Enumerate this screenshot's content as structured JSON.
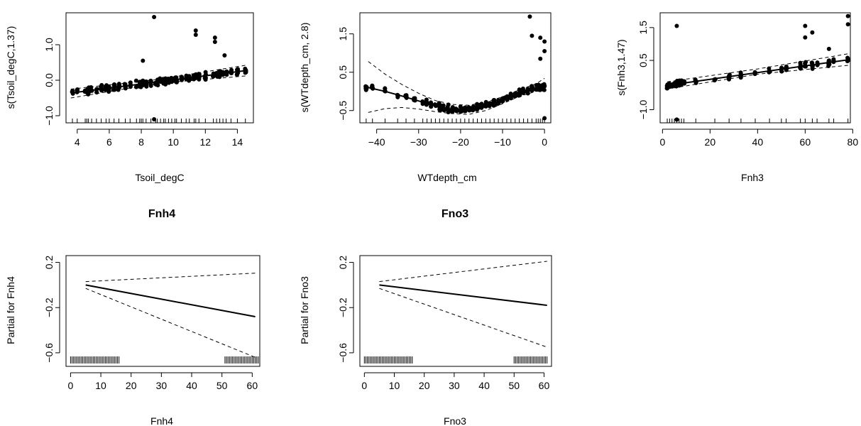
{
  "chart_data": [
    {
      "type": "scatter",
      "title": "",
      "xlabel": "Tsoil_degC",
      "ylabel": "s(Tsoil_degC,1.37)",
      "xlim": [
        3.3,
        15.0
      ],
      "ylim": [
        -1.2,
        1.9
      ],
      "xticks": [
        "4",
        "6",
        "8",
        "10",
        "12",
        "14"
      ],
      "yticks": [
        "-1.0",
        "0.0",
        "1.0"
      ],
      "series": [
        {
          "role": "fit",
          "x": [
            3.6,
            14.5
          ],
          "y": [
            -0.36,
            0.27
          ]
        },
        {
          "role": "upper",
          "x": [
            3.6,
            9,
            14.5
          ],
          "y": [
            -0.25,
            0.02,
            0.42
          ]
        },
        {
          "role": "lower",
          "x": [
            3.6,
            9,
            14.5
          ],
          "y": [
            -0.5,
            -0.09,
            0.12
          ]
        }
      ],
      "points_note": "partial residuals",
      "rug": [
        3.7,
        4.0,
        4.5,
        4.6,
        4.7,
        4.9,
        5.2,
        5.5,
        5.8,
        6.0,
        6.3,
        6.6,
        7.0,
        7.3,
        7.7,
        7.9,
        8.0,
        8.1,
        8.3,
        8.6,
        8.9,
        9.0,
        9.2,
        9.4,
        9.5,
        9.7,
        9.9,
        10.1,
        10.2,
        10.5,
        10.8,
        11.0,
        11.3,
        11.4,
        11.6,
        12.0,
        12.5,
        12.7,
        12.9,
        13.1,
        13.3,
        13.6,
        14.0,
        14.5
      ]
    },
    {
      "type": "scatter",
      "title": "",
      "xlabel": "WTdepth_cm",
      "ylabel": "s(WTdepth_cm, 2.8)",
      "xlim": [
        -44,
        1.5
      ],
      "ylim": [
        -0.82,
        2.05
      ],
      "xticks": [
        "-40",
        "-30",
        "-20",
        "-10",
        "0"
      ],
      "yticks": [
        "-0.5",
        "0.5",
        "1.5"
      ],
      "series": [
        {
          "role": "fit",
          "x": [
            -42,
            -38,
            -34,
            -30,
            -26,
            -22,
            -18,
            -14,
            -10,
            -6,
            -2,
            0
          ],
          "y": [
            0.1,
            0.0,
            -0.12,
            -0.25,
            -0.38,
            -0.47,
            -0.48,
            -0.38,
            -0.22,
            -0.04,
            0.1,
            0.14
          ]
        },
        {
          "role": "upper",
          "x": [
            -42,
            -38,
            -34,
            -30,
            -26,
            -22,
            -18,
            -14,
            -10,
            -6,
            -2,
            0
          ],
          "y": [
            0.78,
            0.45,
            0.18,
            -0.05,
            -0.24,
            -0.34,
            -0.36,
            -0.28,
            -0.14,
            0.04,
            0.2,
            0.34
          ]
        },
        {
          "role": "lower",
          "x": [
            -42,
            -38,
            -34,
            -30,
            -26,
            -22,
            -18,
            -14,
            -10,
            -6,
            -2,
            0
          ],
          "y": [
            -0.55,
            -0.45,
            -0.42,
            -0.46,
            -0.53,
            -0.58,
            -0.6,
            -0.5,
            -0.32,
            -0.13,
            0.0,
            0.03
          ]
        }
      ],
      "points_note": "partial residuals",
      "rug": [
        -42.5,
        -41,
        -38,
        -35,
        -33,
        -31,
        -29,
        -28,
        -27,
        -26,
        -25,
        -24,
        -23,
        -22,
        -21,
        -20,
        -19,
        -18,
        -17,
        -16,
        -15,
        -14,
        -13,
        -12,
        -11,
        -10,
        -9,
        -8,
        -7,
        -6,
        -5,
        -4,
        -3,
        -2,
        -1.5,
        -1,
        -0.5,
        0
      ]
    },
    {
      "type": "scatter",
      "title": "",
      "xlabel": "Fnh3",
      "ylabel": "s(Fnh3,1.47)",
      "xlim": [
        -1,
        79
      ],
      "ylim": [
        -1.4,
        1.95
      ],
      "xticks": [
        "0",
        "20",
        "40",
        "60",
        "80"
      ],
      "yticks": [
        "-1.0",
        "0.5",
        "1.5"
      ],
      "series": [
        {
          "role": "fit",
          "x": [
            2,
            78
          ],
          "y": [
            -0.26,
            0.52
          ]
        },
        {
          "role": "upper",
          "x": [
            2,
            40,
            78
          ],
          "y": [
            -0.15,
            0.24,
            0.7
          ]
        },
        {
          "role": "lower",
          "x": [
            2,
            40,
            78
          ],
          "y": [
            -0.37,
            0.08,
            0.35
          ]
        }
      ],
      "points_note": "partial residuals",
      "rug": [
        2,
        3,
        4,
        5,
        6,
        7,
        8,
        9,
        14,
        22,
        28,
        33,
        39,
        45,
        50,
        52,
        58,
        60,
        63,
        65,
        70,
        72,
        78
      ]
    },
    {
      "type": "line",
      "title": "Fnh4",
      "xlabel": "Fnh4",
      "ylabel": "Partial for Fnh4",
      "xlim": [
        -1.5,
        62.5
      ],
      "ylim": [
        -0.72,
        0.26
      ],
      "xticks": [
        "0",
        "10",
        "20",
        "30",
        "40",
        "50",
        "60"
      ],
      "yticks": [
        "-0.6",
        "-0.2",
        "0.2"
      ],
      "series": [
        {
          "role": "fit",
          "x": [
            5,
            61
          ],
          "y": [
            0.0,
            -0.28
          ]
        },
        {
          "role": "upper",
          "x": [
            5,
            61
          ],
          "y": [
            0.03,
            0.105
          ]
        },
        {
          "role": "lower",
          "x": [
            5,
            61
          ],
          "y": [
            -0.03,
            -0.64
          ]
        }
      ],
      "rug_ranges": [
        [
          0,
          16
        ],
        [
          51,
          62
        ]
      ]
    },
    {
      "type": "line",
      "title": "Fno3",
      "xlabel": "Fno3",
      "ylabel": "Partial for Fno3",
      "xlim": [
        -1.5,
        62.5
      ],
      "ylim": [
        -0.72,
        0.26
      ],
      "xticks": [
        "0",
        "10",
        "20",
        "30",
        "40",
        "50",
        "60"
      ],
      "yticks": [
        "-0.6",
        "-0.2",
        "0.2"
      ],
      "series": [
        {
          "role": "fit",
          "x": [
            5,
            61
          ],
          "y": [
            0.0,
            -0.18
          ]
        },
        {
          "role": "upper",
          "x": [
            5,
            61
          ],
          "y": [
            0.03,
            0.21
          ]
        },
        {
          "role": "lower",
          "x": [
            5,
            61
          ],
          "y": [
            -0.03,
            -0.55
          ]
        }
      ],
      "rug_ranges": [
        [
          0,
          16
        ],
        [
          50,
          61
        ]
      ]
    }
  ]
}
